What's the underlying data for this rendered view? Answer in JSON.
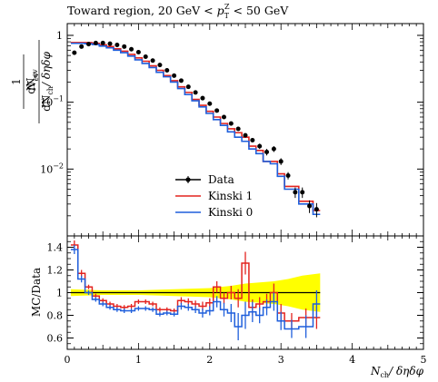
{
  "chart_data": [
    {
      "type": "line",
      "title": "Toward region, 20 GeV < p_T^Z < 50 GeV",
      "title_parts": {
        "prefix": "Toward region, 20 GeV < ",
        "pt": "p",
        "pt_sub": "T",
        "pt_sup": "Z",
        "suffix": " < 50 GeV"
      },
      "ylabel_parts": {
        "num": "1",
        "den_N": "N",
        "den_ev": "ev",
        "frac2_num": "dN",
        "frac2_num_sub": "ev",
        "frac2_den": "dN",
        "frac2_den_sub": "ch",
        "frac2_den_tail": "/ δηδφ"
      },
      "yscale": "log",
      "xlim": [
        0,
        5
      ],
      "ylim": [
        0.001,
        1.5
      ],
      "y_ticks": [
        {
          "value": 1,
          "label": "1"
        },
        {
          "value": 0.1,
          "label": "10",
          "exp": "−1"
        },
        {
          "value": 0.01,
          "label": "10",
          "exp": "−2"
        }
      ],
      "legend_position": "bottom-center",
      "series": [
        {
          "name": "Data",
          "style": "points",
          "color": "#000000",
          "x": [
            0.1,
            0.2,
            0.3,
            0.4,
            0.5,
            0.6,
            0.7,
            0.8,
            0.9,
            1.0,
            1.1,
            1.2,
            1.3,
            1.4,
            1.5,
            1.6,
            1.7,
            1.8,
            1.9,
            2.0,
            2.1,
            2.2,
            2.3,
            2.4,
            2.5,
            2.6,
            2.7,
            2.8,
            2.9,
            3.0,
            3.1,
            3.2,
            3.3,
            3.4,
            3.5
          ],
          "y": [
            0.55,
            0.68,
            0.74,
            0.77,
            0.77,
            0.75,
            0.72,
            0.68,
            0.62,
            0.56,
            0.48,
            0.42,
            0.36,
            0.3,
            0.25,
            0.21,
            0.17,
            0.14,
            0.115,
            0.095,
            0.075,
            0.06,
            0.048,
            0.04,
            0.032,
            0.027,
            0.022,
            0.018,
            0.02,
            0.013,
            0.008,
            0.0045,
            0.0045,
            0.0028,
            0.0025
          ],
          "yerr": [
            0.02,
            0.02,
            0.02,
            0.02,
            0.02,
            0.02,
            0.02,
            0.02,
            0.02,
            0.02,
            0.015,
            0.012,
            0.01,
            0.008,
            0.007,
            0.006,
            0.005,
            0.004,
            0.003,
            0.003,
            0.002,
            0.002,
            0.002,
            0.002,
            0.002,
            0.002,
            0.002,
            0.002,
            0.002,
            0.0015,
            0.001,
            0.0008,
            0.0008,
            0.0006,
            0.0006
          ]
        },
        {
          "name": "Kinski 1",
          "style": "step",
          "color": "#e3231f",
          "edges": [
            0.05,
            0.15,
            0.25,
            0.35,
            0.45,
            0.55,
            0.65,
            0.75,
            0.85,
            0.95,
            1.05,
            1.15,
            1.25,
            1.35,
            1.45,
            1.55,
            1.65,
            1.75,
            1.85,
            1.95,
            2.05,
            2.15,
            2.25,
            2.35,
            2.45,
            2.55,
            2.65,
            2.75,
            2.85,
            2.95,
            3.05,
            3.25,
            3.45,
            3.55
          ],
          "y": [
            0.78,
            0.78,
            0.78,
            0.76,
            0.72,
            0.68,
            0.63,
            0.58,
            0.52,
            0.46,
            0.41,
            0.35,
            0.3,
            0.25,
            0.21,
            0.17,
            0.14,
            0.11,
            0.09,
            0.073,
            0.06,
            0.048,
            0.04,
            0.035,
            0.03,
            0.022,
            0.019,
            0.013,
            0.013,
            0.0085,
            0.0055,
            0.0033,
            0.0024
          ]
        },
        {
          "name": "Kinski 0",
          "style": "step",
          "color": "#1f5fdc",
          "edges": [
            0.05,
            0.15,
            0.25,
            0.35,
            0.45,
            0.55,
            0.65,
            0.75,
            0.85,
            0.95,
            1.05,
            1.15,
            1.25,
            1.35,
            1.45,
            1.55,
            1.65,
            1.75,
            1.85,
            1.95,
            2.05,
            2.15,
            2.25,
            2.35,
            2.45,
            2.55,
            2.65,
            2.75,
            2.85,
            2.95,
            3.05,
            3.25,
            3.45,
            3.55
          ],
          "y": [
            0.76,
            0.76,
            0.75,
            0.73,
            0.69,
            0.65,
            0.6,
            0.55,
            0.49,
            0.43,
            0.38,
            0.33,
            0.28,
            0.24,
            0.2,
            0.16,
            0.13,
            0.105,
            0.085,
            0.068,
            0.055,
            0.045,
            0.036,
            0.03,
            0.026,
            0.02,
            0.017,
            0.013,
            0.012,
            0.0078,
            0.005,
            0.003,
            0.0021
          ]
        }
      ]
    },
    {
      "type": "line",
      "ylabel": "MC/Data",
      "xlabel_parts": {
        "N": "N",
        "sub": "ch",
        "tail": "/ δηδφ"
      },
      "xlim": [
        0,
        5
      ],
      "ylim": [
        0.5,
        1.5
      ],
      "x_ticks": [
        {
          "value": 0,
          "label": "0"
        },
        {
          "value": 1,
          "label": "1"
        },
        {
          "value": 2,
          "label": "2"
        },
        {
          "value": 3,
          "label": "3"
        },
        {
          "value": 4,
          "label": "4"
        },
        {
          "value": 5,
          "label": "5"
        }
      ],
      "y_ticks": [
        {
          "value": 0.6,
          "label": "0.6"
        },
        {
          "value": 0.8,
          "label": "0.8"
        },
        {
          "value": 1.0,
          "label": "1"
        },
        {
          "value": 1.2,
          "label": "1.2"
        },
        {
          "value": 1.4,
          "label": "1.4"
        }
      ],
      "band": {
        "color": "#ffff00",
        "x": [
          0.05,
          0.5,
          1.0,
          1.5,
          2.0,
          2.3,
          2.5,
          2.7,
          2.9,
          3.1,
          3.3,
          3.55
        ],
        "upper": [
          1.03,
          1.02,
          1.02,
          1.03,
          1.04,
          1.06,
          1.08,
          1.09,
          1.1,
          1.12,
          1.15,
          1.17
        ],
        "lower": [
          0.97,
          0.98,
          0.98,
          0.97,
          0.96,
          0.94,
          0.92,
          0.91,
          0.9,
          0.88,
          0.85,
          0.83
        ]
      },
      "series": [
        {
          "name": "Kinski 1",
          "style": "step",
          "color": "#e3231f",
          "edges": [
            0.05,
            0.15,
            0.25,
            0.35,
            0.45,
            0.55,
            0.65,
            0.75,
            0.85,
            0.95,
            1.05,
            1.15,
            1.25,
            1.35,
            1.45,
            1.55,
            1.65,
            1.75,
            1.85,
            1.95,
            2.05,
            2.15,
            2.25,
            2.35,
            2.45,
            2.55,
            2.65,
            2.75,
            2.85,
            2.95,
            3.05,
            3.25,
            3.45,
            3.55
          ],
          "y": [
            1.42,
            1.17,
            1.05,
            0.97,
            0.93,
            0.9,
            0.88,
            0.87,
            0.88,
            0.92,
            0.92,
            0.9,
            0.85,
            0.85,
            0.84,
            0.93,
            0.92,
            0.9,
            0.88,
            0.91,
            1.05,
            0.95,
            1.0,
            0.95,
            1.26,
            0.87,
            0.9,
            0.92,
            1.0,
            0.82,
            0.75,
            0.78,
            0.78
          ],
          "yerr": [
            0.04,
            0.03,
            0.02,
            0.02,
            0.02,
            0.02,
            0.02,
            0.02,
            0.02,
            0.02,
            0.02,
            0.02,
            0.02,
            0.02,
            0.02,
            0.03,
            0.03,
            0.03,
            0.04,
            0.04,
            0.05,
            0.05,
            0.06,
            0.08,
            0.1,
            0.07,
            0.06,
            0.07,
            0.08,
            0.08,
            0.07,
            0.08,
            0.1
          ]
        },
        {
          "name": "Kinski 0",
          "style": "step",
          "color": "#1f5fdc",
          "edges": [
            0.05,
            0.15,
            0.25,
            0.35,
            0.45,
            0.55,
            0.65,
            0.75,
            0.85,
            0.95,
            1.05,
            1.15,
            1.25,
            1.35,
            1.45,
            1.55,
            1.65,
            1.75,
            1.85,
            1.95,
            2.05,
            2.15,
            2.25,
            2.35,
            2.45,
            2.55,
            2.65,
            2.75,
            2.85,
            2.95,
            3.05,
            3.25,
            3.45,
            3.55
          ],
          "y": [
            1.38,
            1.12,
            1.0,
            0.94,
            0.9,
            0.87,
            0.85,
            0.84,
            0.84,
            0.86,
            0.86,
            0.85,
            0.81,
            0.82,
            0.81,
            0.88,
            0.87,
            0.85,
            0.82,
            0.84,
            0.92,
            0.85,
            0.82,
            0.7,
            0.8,
            0.83,
            0.8,
            0.87,
            0.92,
            0.75,
            0.68,
            0.7,
            0.9
          ],
          "yerr": [
            0.04,
            0.03,
            0.02,
            0.02,
            0.02,
            0.02,
            0.02,
            0.02,
            0.02,
            0.02,
            0.02,
            0.02,
            0.02,
            0.02,
            0.02,
            0.03,
            0.03,
            0.03,
            0.04,
            0.04,
            0.05,
            0.06,
            0.08,
            0.12,
            0.12,
            0.09,
            0.07,
            0.07,
            0.08,
            0.08,
            0.08,
            0.1,
            0.12
          ]
        }
      ]
    }
  ]
}
